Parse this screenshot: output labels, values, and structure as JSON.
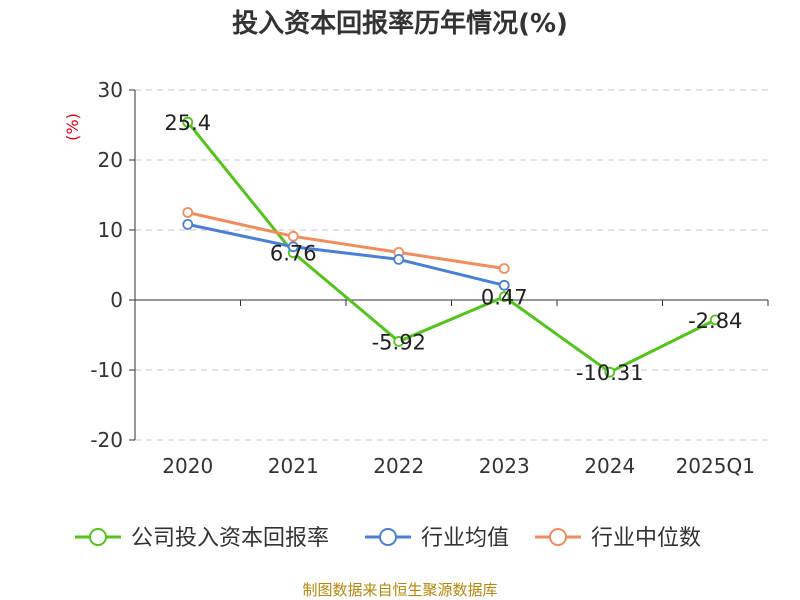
{
  "chart_data": {
    "type": "line",
    "title": "投入资本回报率历年情况(%)",
    "ylabel": "(%)",
    "xlabel": "",
    "categories": [
      "2020",
      "2021",
      "2022",
      "2023",
      "2024",
      "2025Q1"
    ],
    "ylim": [
      -20,
      30
    ],
    "yticks": [
      30,
      20,
      10,
      0,
      -10,
      -20
    ],
    "grid": true,
    "legend_position": "bottom",
    "series": [
      {
        "name": "公司投入资本回报率",
        "color": "#52c41a",
        "values": [
          25.4,
          6.76,
          -5.92,
          0.47,
          -10.31,
          -2.84
        ],
        "labels": [
          "25.4",
          "6.76",
          "-5.92",
          "0.47",
          "-10.31",
          "-2.84"
        ]
      },
      {
        "name": "行业均值",
        "color": "#4a7fd9",
        "values": [
          10.8,
          7.6,
          5.8,
          2.1,
          null,
          null
        ]
      },
      {
        "name": "行业中位数",
        "color": "#f28c5a",
        "values": [
          12.5,
          9.1,
          6.8,
          4.5,
          null,
          null
        ]
      }
    ]
  },
  "source": "制图数据来自恒生聚源数据库"
}
